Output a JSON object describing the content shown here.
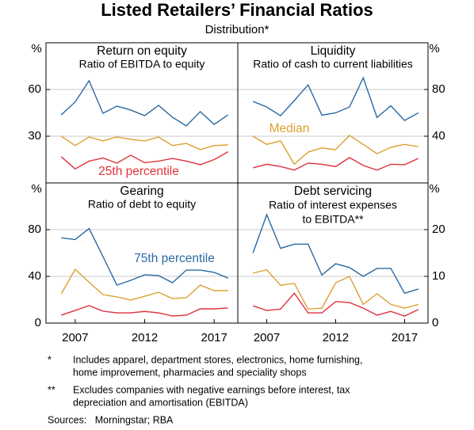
{
  "title": "Listed Retailers’ Financial Ratios",
  "subtitle": "Distribution*",
  "chart_data": [
    {
      "type": "line",
      "title": "Return on equity",
      "subtitle": "Ratio of EBITDA to equity",
      "yunit": "%",
      "yaxis_side": "left",
      "x": [
        2006,
        2007,
        2008,
        2009,
        2010,
        2011,
        2012,
        2013,
        2014,
        2015,
        2016,
        2017,
        2018
      ],
      "xlim": [
        2004.9,
        2018.7
      ],
      "ylim": [
        0,
        90
      ],
      "yticks": [
        30,
        60
      ],
      "grid": true,
      "series": [
        {
          "color": "#2b6aa3",
          "values": [
            43.7,
            52,
            65.6,
            44.7,
            49.3,
            46.8,
            43.2,
            49.8,
            42.2,
            36.6,
            45.8,
            37.6,
            43.7
          ]
        },
        {
          "color": "#dba030",
          "values": [
            30,
            24,
            29.5,
            27,
            29.5,
            28,
            27,
            29.5,
            24,
            25.4,
            21.4,
            24,
            24.4
          ]
        },
        {
          "name": "25th percentile",
          "color": "#e0323c",
          "values": [
            16.8,
            9,
            14,
            16,
            12.7,
            17.8,
            13,
            14,
            15.7,
            14,
            11.7,
            15,
            20
          ]
        }
      ]
    },
    {
      "type": "line",
      "title": "Liquidity",
      "subtitle": "Ratio of cash to current liabilities",
      "yunit": "%",
      "yaxis_side": "right",
      "x": [
        2006,
        2007,
        2008,
        2009,
        2010,
        2011,
        2012,
        2013,
        2014,
        2015,
        2016,
        2017,
        2018
      ],
      "xlim": [
        2004.9,
        2018.7
      ],
      "ylim": [
        0,
        120
      ],
      "yticks": [
        40,
        80
      ],
      "grid": true,
      "series": [
        {
          "color": "#2b6aa3",
          "values": [
            69.8,
            65,
            57.6,
            70.5,
            84,
            58,
            60,
            65,
            90,
            56,
            66,
            53.5,
            60
          ]
        },
        {
          "name": "Median",
          "color": "#dba030",
          "values": [
            40,
            33,
            36,
            16,
            26.4,
            30,
            28.5,
            40.7,
            33,
            25,
            30.5,
            33,
            31
          ]
        },
        {
          "color": "#e0323c",
          "values": [
            12.9,
            16,
            14,
            11,
            17,
            16,
            14,
            21.7,
            15,
            11,
            16,
            15.6,
            21
          ]
        }
      ]
    },
    {
      "type": "line",
      "title": "Gearing",
      "subtitle": "Ratio of debt to equity",
      "yunit": "%",
      "yaxis_side": "left",
      "x": [
        2006,
        2007,
        2008,
        2009,
        2010,
        2011,
        2012,
        2013,
        2014,
        2015,
        2016,
        2017,
        2018
      ],
      "xlim": [
        2004.9,
        2018.7
      ],
      "xticks": [
        2007,
        2012,
        2017
      ],
      "ylim": [
        0,
        120
      ],
      "yticks": [
        0,
        40,
        80
      ],
      "grid": true,
      "series": [
        {
          "name": "75th percentile",
          "color": "#2b6aa3",
          "values": [
            73,
            71.5,
            81,
            57,
            32.5,
            36.6,
            41.4,
            40.7,
            34.6,
            45.4,
            45.4,
            43.4,
            38.6
          ]
        },
        {
          "color": "#dba030",
          "values": [
            25,
            46,
            35,
            24.4,
            22.4,
            19.7,
            23,
            26.4,
            21,
            21.7,
            32.5,
            27.8,
            27.8
          ]
        },
        {
          "color": "#e0323c",
          "values": [
            6.8,
            10.8,
            15,
            10.2,
            8.8,
            8.8,
            10,
            8.8,
            6.1,
            6.8,
            12.2,
            12.2,
            12.9
          ]
        }
      ]
    },
    {
      "type": "line",
      "title": "Debt servicing",
      "subtitle": [
        "Ratio of interest expenses",
        "to EBITDA**"
      ],
      "yunit": "%",
      "yaxis_side": "right",
      "x": [
        2006,
        2007,
        2008,
        2009,
        2010,
        2011,
        2012,
        2013,
        2014,
        2015,
        2016,
        2017,
        2018
      ],
      "xlim": [
        2004.9,
        2018.7
      ],
      "xticks": [
        2007,
        2012,
        2017
      ],
      "ylim": [
        0,
        30
      ],
      "yticks": [
        0,
        10,
        20
      ],
      "grid": true,
      "series": [
        {
          "color": "#2b6aa3",
          "values": [
            15,
            23.2,
            16,
            16.9,
            16.9,
            10.3,
            12.7,
            11.9,
            10,
            11.7,
            11.7,
            6.4,
            7.3
          ]
        },
        {
          "color": "#dba030",
          "values": [
            10.7,
            11.4,
            8.1,
            8.5,
            3,
            3.2,
            8.6,
            10,
            4,
            6.3,
            4,
            3.2,
            4
          ]
        },
        {
          "color": "#e0323c",
          "values": [
            3.7,
            2.7,
            3,
            6.4,
            2.2,
            2.2,
            4.6,
            4.4,
            3.2,
            1.7,
            2.5,
            1.5,
            2.9
          ]
        }
      ]
    }
  ],
  "notes": [
    {
      "marker": "*",
      "lines": [
        "Includes apparel, department stores, electronics, home furnishing,",
        "home improvement, pharmacies and speciality shops"
      ]
    },
    {
      "marker": "**",
      "lines": [
        "Excludes companies with negative earnings before interest, tax",
        "depreciation and amortisation (EBITDA)"
      ]
    }
  ],
  "source": "Sources:   Morningstar; RBA"
}
